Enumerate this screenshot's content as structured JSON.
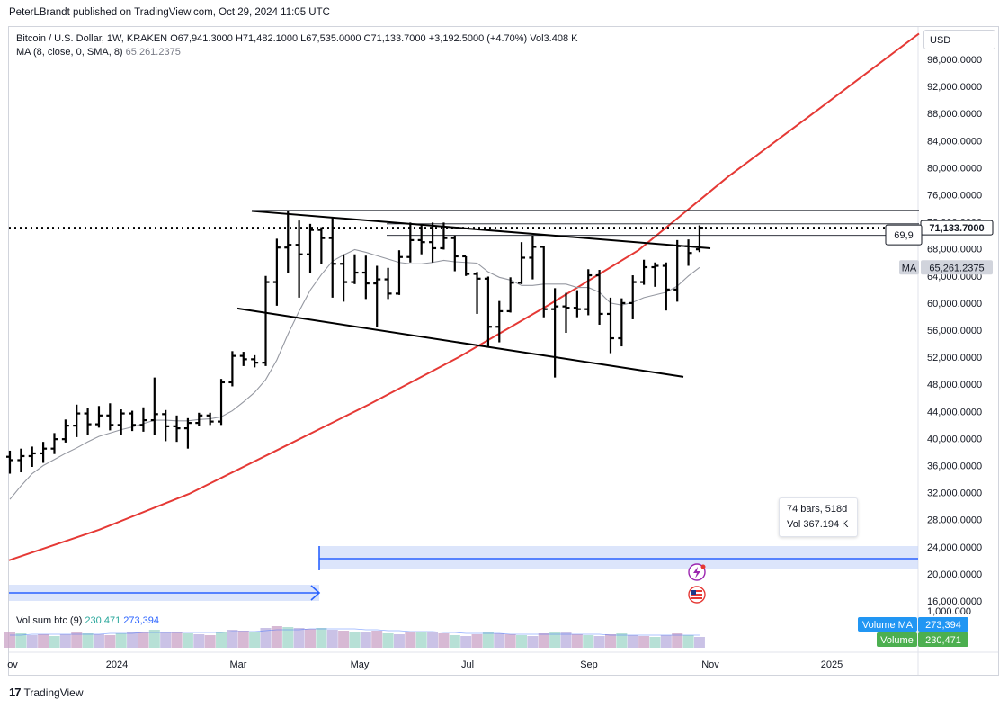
{
  "header": {
    "published": "PeterLBrandt published on TradingView.com, Oct 29, 2024 11:05 UTC",
    "symbol_line": "Bitcoin / U.S. Dollar, 1W, KRAKEN",
    "open": "O67,941.3000",
    "high": "H71,482.1000",
    "low": "L67,535.0000",
    "close": "C71,133.7000",
    "change": "+3,192.5000 (+4.70%)",
    "volume": "Vol3.408 K",
    "ma_label": "MA (8, close, 0, SMA, 8)",
    "ma_value": "65,261.2375"
  },
  "currency_button": "USD",
  "tooltip": {
    "bars": "74 bars, 518d",
    "vol": "Vol 367.194 K"
  },
  "volume_pane": {
    "label": "Vol sum btc (9)",
    "value_volume": "230,471",
    "value_ma": "273,394",
    "axis_top": "1,000.000",
    "badge_ma_label": "Volume MA",
    "badge_volume_label": "Volume"
  },
  "badges": {
    "last_price": "71,133.7000",
    "ma_tag": "MA",
    "ma_price": "65,261.2375",
    "partial_price": "69,9"
  },
  "footer": {
    "brand": "TradingView"
  },
  "colors": {
    "bar": "#000000",
    "ma": "#9598a1",
    "curve": "#e53935",
    "range": "#2962ff"
  },
  "chart_data": {
    "type": "ohlc",
    "y_ticks": [
      "96,000.0000",
      "92,000.0000",
      "88,000.0000",
      "84,000.0000",
      "80,000.0000",
      "76,000.0000",
      "72,000.0000",
      "68,000.0000",
      "64,000.0000",
      "60,000.0000",
      "56,000.0000",
      "52,000.0000",
      "48,000.0000",
      "44,000.0000",
      "40,000.0000",
      "36,000.0000",
      "32,000.0000",
      "28,000.0000",
      "24,000.0000",
      "20,000.0000",
      "16,000.0000"
    ],
    "x_ticks": [
      "ov",
      "2024",
      "Mar",
      "May",
      "Jul",
      "Sep",
      "Nov",
      "2025"
    ],
    "ylim": [
      12000,
      104000
    ],
    "bars": [
      {
        "o": 37300,
        "h": 38200,
        "l": 34800,
        "c": 36800
      },
      {
        "o": 36800,
        "h": 38500,
        "l": 35000,
        "c": 37400
      },
      {
        "o": 37400,
        "h": 38800,
        "l": 35800,
        "c": 37800
      },
      {
        "o": 37800,
        "h": 39500,
        "l": 36400,
        "c": 38500
      },
      {
        "o": 38500,
        "h": 40800,
        "l": 37700,
        "c": 39900
      },
      {
        "o": 39900,
        "h": 42800,
        "l": 39400,
        "c": 41900
      },
      {
        "o": 41900,
        "h": 45000,
        "l": 40200,
        "c": 43700
      },
      {
        "o": 43700,
        "h": 44500,
        "l": 40500,
        "c": 42100
      },
      {
        "o": 42100,
        "h": 44800,
        "l": 41600,
        "c": 43400
      },
      {
        "o": 43400,
        "h": 45200,
        "l": 41200,
        "c": 42000
      },
      {
        "o": 42000,
        "h": 44300,
        "l": 40500,
        "c": 43700
      },
      {
        "o": 43700,
        "h": 44100,
        "l": 41100,
        "c": 42000
      },
      {
        "o": 42000,
        "h": 44600,
        "l": 41000,
        "c": 42700
      },
      {
        "o": 42700,
        "h": 49000,
        "l": 40500,
        "c": 43600
      },
      {
        "o": 43600,
        "h": 44200,
        "l": 39600,
        "c": 41800
      },
      {
        "o": 41800,
        "h": 43400,
        "l": 39500,
        "c": 41500
      },
      {
        "o": 41500,
        "h": 43000,
        "l": 38500,
        "c": 42300
      },
      {
        "o": 42300,
        "h": 43800,
        "l": 41800,
        "c": 43400
      },
      {
        "o": 43400,
        "h": 43800,
        "l": 42000,
        "c": 42500
      },
      {
        "o": 42500,
        "h": 48800,
        "l": 42000,
        "c": 48300
      },
      {
        "o": 48300,
        "h": 52900,
        "l": 47700,
        "c": 52200
      },
      {
        "o": 52200,
        "h": 52800,
        "l": 50700,
        "c": 51700
      },
      {
        "o": 51700,
        "h": 52300,
        "l": 50500,
        "c": 51200
      },
      {
        "o": 51200,
        "h": 64000,
        "l": 50700,
        "c": 63100
      },
      {
        "o": 63100,
        "h": 69500,
        "l": 59600,
        "c": 68200
      },
      {
        "o": 68200,
        "h": 73600,
        "l": 64500,
        "c": 68600
      },
      {
        "o": 68600,
        "h": 72200,
        "l": 60800,
        "c": 67200
      },
      {
        "o": 67200,
        "h": 71700,
        "l": 64500,
        "c": 70800
      },
      {
        "o": 70800,
        "h": 71200,
        "l": 65700,
        "c": 69600
      },
      {
        "o": 69600,
        "h": 72700,
        "l": 60800,
        "c": 65800
      },
      {
        "o": 65800,
        "h": 67200,
        "l": 60200,
        "c": 63100
      },
      {
        "o": 63100,
        "h": 67200,
        "l": 62800,
        "c": 64500
      },
      {
        "o": 64500,
        "h": 67000,
        "l": 60600,
        "c": 62900
      },
      {
        "o": 62900,
        "h": 65500,
        "l": 56500,
        "c": 63500
      },
      {
        "o": 63500,
        "h": 65200,
        "l": 60600,
        "c": 61400
      },
      {
        "o": 61400,
        "h": 67800,
        "l": 61200,
        "c": 66800
      },
      {
        "o": 66800,
        "h": 71900,
        "l": 66000,
        "c": 69300
      },
      {
        "o": 69300,
        "h": 71700,
        "l": 67200,
        "c": 69000
      },
      {
        "o": 69000,
        "h": 71900,
        "l": 66000,
        "c": 68100
      },
      {
        "o": 68100,
        "h": 71900,
        "l": 67900,
        "c": 69600
      },
      {
        "o": 69600,
        "h": 70000,
        "l": 64700,
        "c": 66900
      },
      {
        "o": 66900,
        "h": 66900,
        "l": 64000,
        "c": 64300
      },
      {
        "o": 64300,
        "h": 64600,
        "l": 58400,
        "c": 63600
      },
      {
        "o": 63600,
        "h": 63900,
        "l": 53500,
        "c": 56500
      },
      {
        "o": 56500,
        "h": 60300,
        "l": 54200,
        "c": 58800
      },
      {
        "o": 58800,
        "h": 63800,
        "l": 58600,
        "c": 63000
      },
      {
        "o": 63000,
        "h": 69000,
        "l": 62800,
        "c": 66700
      },
      {
        "o": 66700,
        "h": 70000,
        "l": 63500,
        "c": 68300
      },
      {
        "o": 68300,
        "h": 68500,
        "l": 57900,
        "c": 59100
      },
      {
        "o": 59100,
        "h": 62200,
        "l": 49000,
        "c": 59500
      },
      {
        "o": 59500,
        "h": 61500,
        "l": 55600,
        "c": 59300
      },
      {
        "o": 59300,
        "h": 61900,
        "l": 57900,
        "c": 59100
      },
      {
        "o": 59100,
        "h": 65000,
        "l": 58200,
        "c": 64100
      },
      {
        "o": 64100,
        "h": 64900,
        "l": 56800,
        "c": 58400
      },
      {
        "o": 58400,
        "h": 60800,
        "l": 52600,
        "c": 54800
      },
      {
        "o": 54800,
        "h": 60700,
        "l": 53600,
        "c": 60000
      },
      {
        "o": 60000,
        "h": 64100,
        "l": 57600,
        "c": 63100
      },
      {
        "o": 63100,
        "h": 66400,
        "l": 62700,
        "c": 65300
      },
      {
        "o": 65300,
        "h": 66000,
        "l": 62400,
        "c": 65500
      },
      {
        "o": 65500,
        "h": 66000,
        "l": 58900,
        "c": 62000
      },
      {
        "o": 62000,
        "h": 69300,
        "l": 60200,
        "c": 68400
      },
      {
        "o": 68400,
        "h": 69400,
        "l": 65500,
        "c": 67400
      },
      {
        "o": 67940,
        "h": 71480,
        "l": 67530,
        "c": 71130
      }
    ],
    "ma_series": [
      31000,
      33000,
      34800,
      36000,
      36900,
      37800,
      38600,
      39500,
      40300,
      40800,
      41300,
      41700,
      42200,
      42700,
      42700,
      42600,
      42600,
      42800,
      42900,
      43200,
      44100,
      45400,
      46800,
      48700,
      51600,
      55400,
      58800,
      61900,
      64200,
      66200,
      67100,
      67900,
      67500,
      67000,
      66500,
      66000,
      65800,
      65800,
      66000,
      66300,
      66100,
      66000,
      65900,
      64600,
      63800,
      63400,
      62600,
      62600,
      62800,
      62800,
      62800,
      62300,
      62300,
      61600,
      60000,
      59700,
      60100,
      60800,
      61200,
      61600,
      62500,
      64000,
      65260
    ],
    "curve_points": [
      [
        0,
        22000
      ],
      [
        100,
        26500
      ],
      [
        200,
        31800
      ],
      [
        300,
        38400
      ],
      [
        400,
        45000
      ],
      [
        500,
        52000
      ],
      [
        600,
        59700
      ],
      [
        700,
        67800
      ],
      [
        800,
        78700
      ],
      [
        900,
        88600
      ],
      [
        1012,
        99800
      ]
    ],
    "trendlines": [
      {
        "x1": 280,
        "y1": 73600,
        "x2": 790,
        "y2": 68100
      },
      {
        "x1": 264,
        "y1": 59200,
        "x2": 760,
        "y2": 49100
      }
    ],
    "hlines": [
      {
        "x1": 280,
        "y1": 73700,
        "x2": 1022,
        "y2": 73700
      },
      {
        "x1": 430,
        "y1": 71700,
        "x2": 1022,
        "y2": 71700
      },
      {
        "x1": 430,
        "y1": 70000,
        "x2": 1022,
        "y2": 70000
      }
    ],
    "last_price": 71133.7,
    "volume_bars": [
      18,
      16,
      14,
      15,
      13,
      15,
      17,
      16,
      15,
      14,
      16,
      18,
      17,
      20,
      18,
      17,
      16,
      15,
      14,
      18,
      20,
      19,
      17,
      22,
      24,
      23,
      22,
      21,
      22,
      20,
      19,
      18,
      17,
      19,
      16,
      15,
      17,
      18,
      17,
      16,
      14,
      13,
      15,
      17,
      16,
      15,
      14,
      13,
      16,
      18,
      17,
      15,
      14,
      13,
      15,
      16,
      14,
      13,
      12,
      14,
      16,
      14,
      12
    ],
    "volume_ma": [
      14,
      14,
      15,
      15,
      15,
      15,
      15,
      15,
      15,
      16,
      16,
      16,
      17,
      17,
      17,
      17,
      17,
      17,
      17,
      17,
      18,
      18,
      18,
      19,
      20,
      20,
      20,
      21,
      21,
      21,
      21,
      21,
      20,
      20,
      19,
      19,
      18,
      18,
      18,
      17,
      17,
      16,
      16,
      16,
      16,
      15,
      15,
      15,
      15,
      15,
      15,
      15,
      15,
      15,
      14,
      14,
      14,
      14,
      14,
      14,
      14,
      14,
      14
    ]
  }
}
